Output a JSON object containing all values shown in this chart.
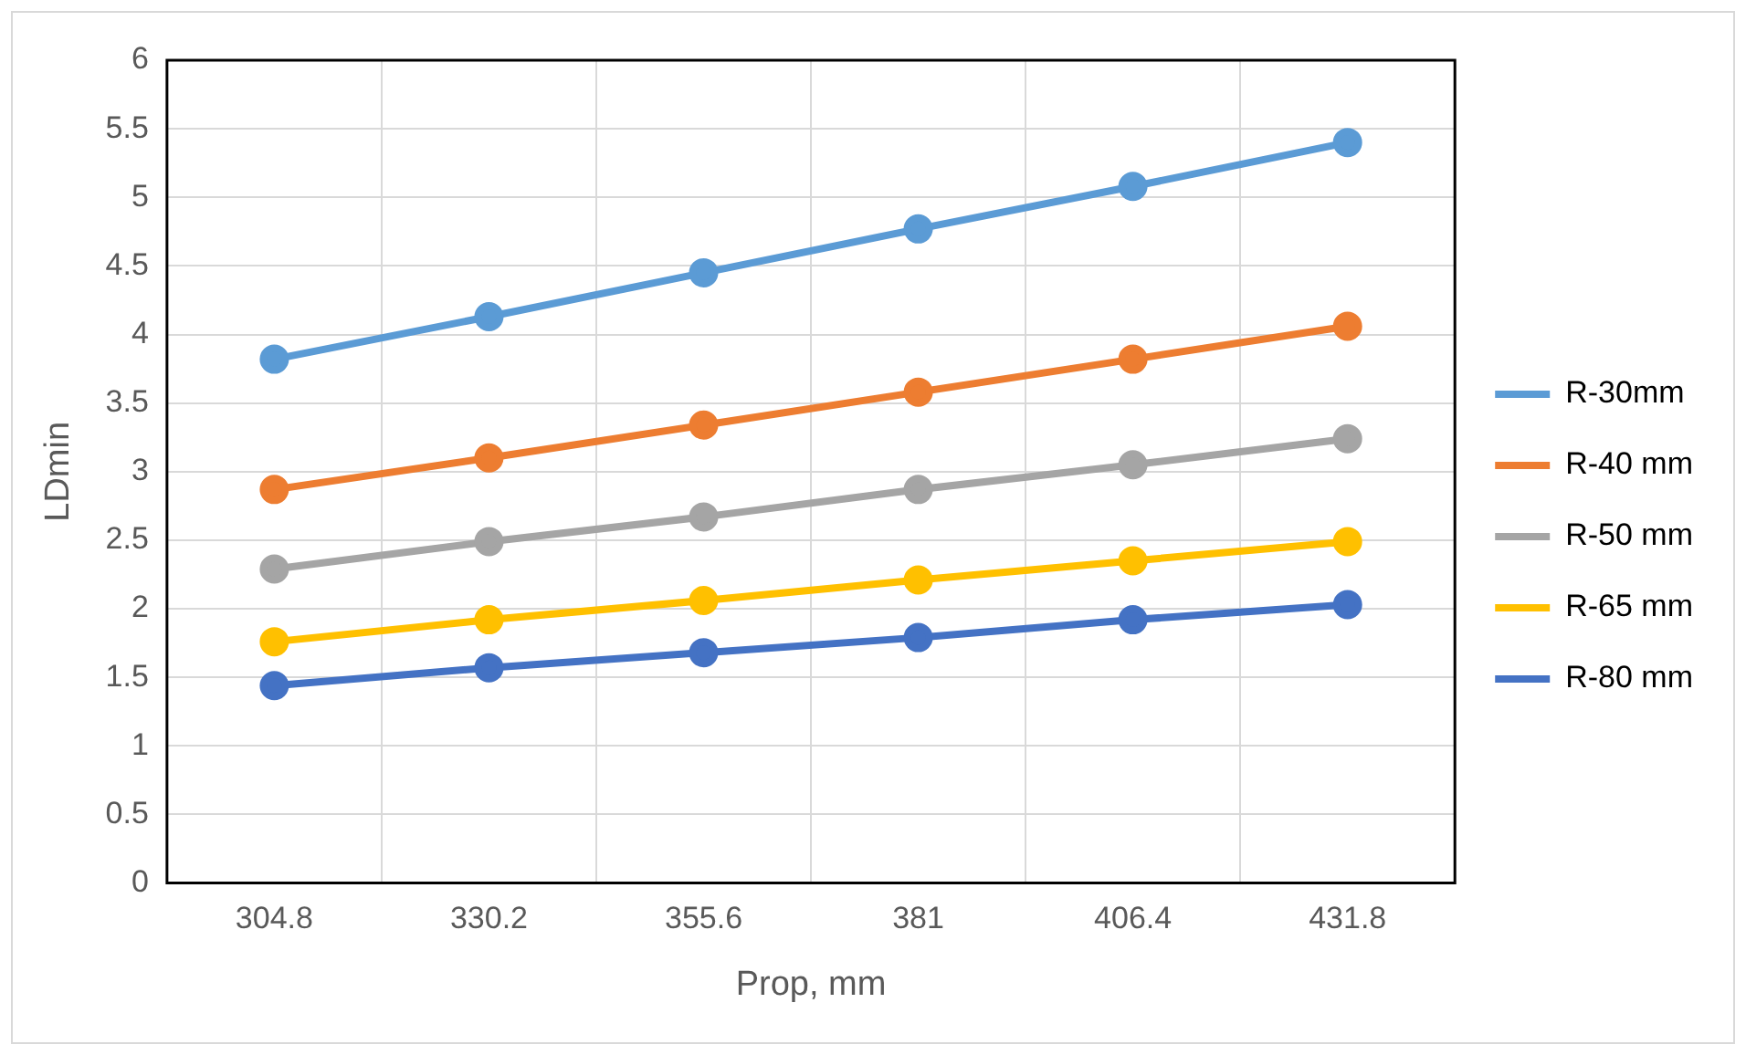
{
  "chart_data": {
    "type": "line",
    "xlabel": "Prop, mm",
    "ylabel": "LDmin",
    "categories": [
      "304.8",
      "330.2",
      "355.6",
      "381",
      "406.4",
      "431.8"
    ],
    "series": [
      {
        "name": "R-30mm",
        "color": "#5b9bd5",
        "values": [
          3.82,
          4.13,
          4.45,
          4.77,
          5.08,
          5.4
        ]
      },
      {
        "name": "R-40 mm",
        "color": "#ed7d31",
        "values": [
          2.87,
          3.1,
          3.34,
          3.58,
          3.82,
          4.06
        ]
      },
      {
        "name": "R-50 mm",
        "color": "#a5a5a5",
        "values": [
          2.29,
          2.49,
          2.67,
          2.87,
          3.05,
          3.24
        ]
      },
      {
        "name": "R-65 mm",
        "color": "#ffc000",
        "values": [
          1.76,
          1.92,
          2.06,
          2.21,
          2.35,
          2.49
        ]
      },
      {
        "name": "R-80 mm",
        "color": "#4472c4",
        "values": [
          1.44,
          1.57,
          1.68,
          1.79,
          1.92,
          2.03
        ]
      }
    ],
    "ylim": [
      0,
      6
    ],
    "yticks": [
      0,
      0.5,
      1,
      1.5,
      2,
      2.5,
      3,
      3.5,
      4,
      4.5,
      5,
      5.5,
      6
    ],
    "grid": true,
    "legend": "right",
    "marker": "circle",
    "line_style": "solid"
  }
}
